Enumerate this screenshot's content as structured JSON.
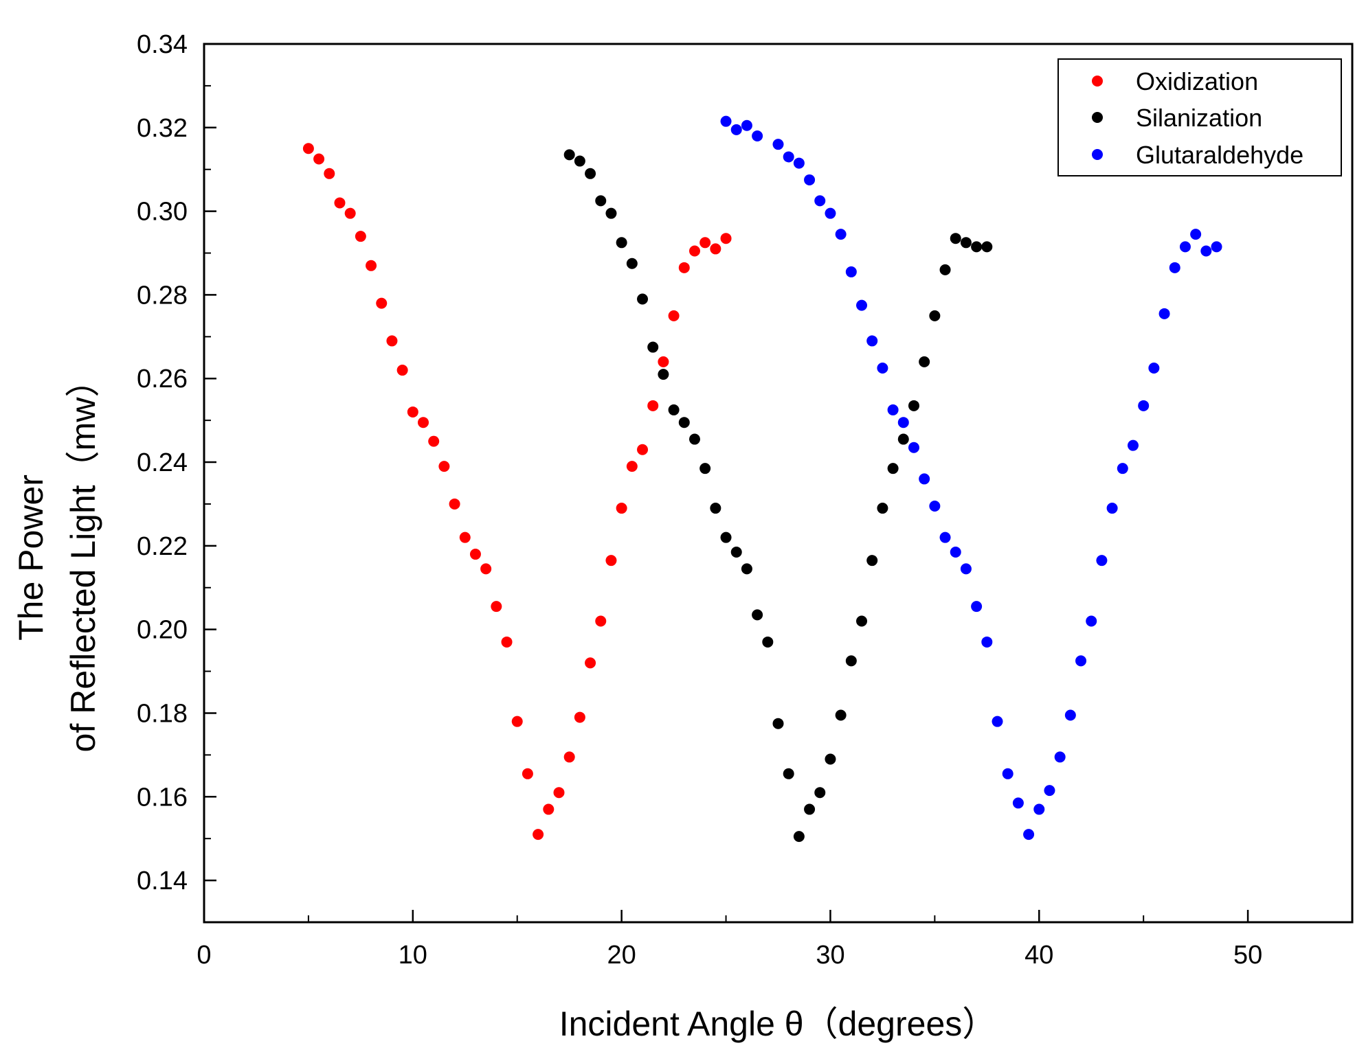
{
  "chart_data": {
    "type": "scatter",
    "title": "",
    "xlabel": "Incident  Angle θ（degrees）",
    "ylabel_line1": "The Power",
    "ylabel_line2": "of Reflected Light（mw）",
    "xlim": [
      0,
      55
    ],
    "ylim": [
      0.13,
      0.34
    ],
    "xticks": [
      0,
      10,
      20,
      30,
      40,
      50
    ],
    "xtick_labels": [
      "0",
      "10",
      "20",
      "30",
      "40",
      "50"
    ],
    "yticks": [
      0.14,
      0.16,
      0.18,
      0.2,
      0.22,
      0.24,
      0.26,
      0.28,
      0.3,
      0.32,
      0.34
    ],
    "ytick_labels": [
      "0.14",
      "0.16",
      "0.18",
      "0.20",
      "0.22",
      "0.24",
      "0.26",
      "0.28",
      "0.30",
      "0.32",
      "0.34"
    ],
    "grid": false,
    "legend_position": "top-right",
    "series": [
      {
        "name": "Oxidization",
        "color": "#ff0000",
        "x": [
          5,
          5.5,
          6,
          6.5,
          7,
          7.5,
          8,
          8.5,
          9,
          9.5,
          10,
          10.5,
          11,
          11.5,
          12,
          12.5,
          13,
          13.5,
          14,
          14.5,
          15,
          15.5,
          16,
          16.5,
          17,
          17.5,
          18,
          18.5,
          19,
          19.5,
          20,
          20.5,
          21,
          21.5,
          22,
          22.5,
          23,
          23.5,
          24,
          24.5,
          25
        ],
        "y": [
          0.315,
          0.3125,
          0.309,
          0.302,
          0.2995,
          0.294,
          0.287,
          0.278,
          0.269,
          0.262,
          0.252,
          0.2495,
          0.245,
          0.239,
          0.23,
          0.222,
          0.218,
          0.2145,
          0.2055,
          0.197,
          0.178,
          0.1655,
          0.151,
          0.157,
          0.161,
          0.1695,
          0.179,
          0.192,
          0.202,
          0.2165,
          0.229,
          0.239,
          0.243,
          0.2535,
          0.264,
          0.275,
          0.2865,
          0.2905,
          0.2925,
          0.291,
          0.2935
        ]
      },
      {
        "name": "Silanization",
        "color": "#000000",
        "x": [
          17.5,
          18,
          18.5,
          19,
          19.5,
          20,
          20.5,
          21,
          21.5,
          22,
          22.5,
          23,
          23.5,
          24,
          24.5,
          25,
          25.5,
          26,
          26.5,
          27,
          27.5,
          28,
          28.5,
          29,
          29.5,
          30,
          30.5,
          31,
          31.5,
          32,
          32.5,
          33,
          33.5,
          34,
          34.5,
          35,
          35.5,
          36,
          36.5,
          37,
          37.5
        ],
        "y": [
          0.3135,
          0.312,
          0.309,
          0.3025,
          0.2995,
          0.2925,
          0.2875,
          0.279,
          0.2675,
          0.261,
          0.2525,
          0.2495,
          0.2455,
          0.2385,
          0.229,
          0.222,
          0.2185,
          0.2145,
          0.2035,
          0.197,
          0.1775,
          0.1655,
          0.1505,
          0.157,
          0.161,
          0.169,
          0.1795,
          0.1925,
          0.202,
          0.2165,
          0.229,
          0.2385,
          0.2455,
          0.2535,
          0.264,
          0.275,
          0.286,
          0.2935,
          0.2925,
          0.2915,
          0.2915
        ]
      },
      {
        "name": "Glutaraldehyde",
        "color": "#0000ff",
        "x": [
          25,
          25.5,
          26,
          26.5,
          27.5,
          28,
          28.5,
          29,
          29.5,
          30,
          30.5,
          31,
          31.5,
          32,
          32.5,
          33,
          33.5,
          34,
          34.5,
          35,
          35.5,
          36,
          36.5,
          37,
          37.5,
          38,
          38.5,
          39,
          39.5,
          40,
          40.5,
          41,
          41.5,
          42,
          42.5,
          43,
          43.5,
          44,
          44.5,
          45,
          45.5,
          46,
          46.5,
          47,
          47.5,
          48,
          48.5
        ],
        "y": [
          0.3215,
          0.3195,
          0.3205,
          0.318,
          0.316,
          0.313,
          0.3115,
          0.3075,
          0.3025,
          0.2995,
          0.2945,
          0.2855,
          0.2775,
          0.269,
          0.2625,
          0.2525,
          0.2495,
          0.2435,
          0.236,
          0.2295,
          0.222,
          0.2185,
          0.2145,
          0.2055,
          0.197,
          0.178,
          0.1655,
          0.1585,
          0.151,
          0.157,
          0.1615,
          0.1695,
          0.1795,
          0.1925,
          0.202,
          0.2165,
          0.229,
          0.2385,
          0.244,
          0.2535,
          0.2625,
          0.2755,
          0.2865,
          0.2915,
          0.2945,
          0.2905,
          0.2915
        ]
      }
    ]
  }
}
